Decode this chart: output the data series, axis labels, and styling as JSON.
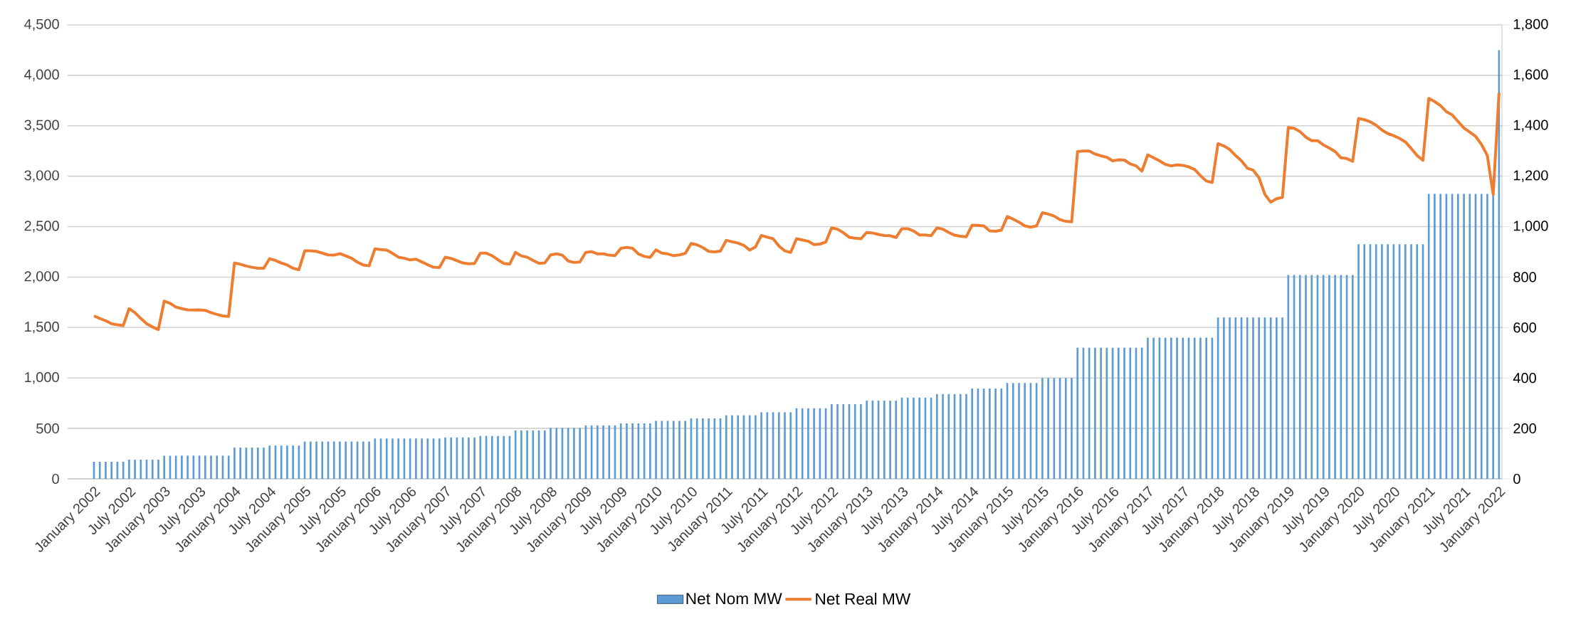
{
  "chart_data": {
    "type": "bar",
    "categories": [
      "January 2002",
      null,
      null,
      null,
      null,
      null,
      "July 2002",
      null,
      null,
      null,
      null,
      null,
      "January 2003",
      null,
      null,
      null,
      null,
      null,
      "July 2003",
      null,
      null,
      null,
      null,
      null,
      "January 2004",
      null,
      null,
      null,
      null,
      null,
      "July 2004",
      null,
      null,
      null,
      null,
      null,
      "January 2005",
      null,
      null,
      null,
      null,
      null,
      "July 2005",
      null,
      null,
      null,
      null,
      null,
      "January 2006",
      null,
      null,
      null,
      null,
      null,
      "July 2006",
      null,
      null,
      null,
      null,
      null,
      "January 2007",
      null,
      null,
      null,
      null,
      null,
      "July 2007",
      null,
      null,
      null,
      null,
      null,
      "January 2008",
      null,
      null,
      null,
      null,
      null,
      "July 2008",
      null,
      null,
      null,
      null,
      null,
      "January 2009",
      null,
      null,
      null,
      null,
      null,
      "July 2009",
      null,
      null,
      null,
      null,
      null,
      "January 2010",
      null,
      null,
      null,
      null,
      null,
      "July 2010",
      null,
      null,
      null,
      null,
      null,
      "January 2011",
      null,
      null,
      null,
      null,
      null,
      "July 2011",
      null,
      null,
      null,
      null,
      null,
      "January 2012",
      null,
      null,
      null,
      null,
      null,
      "July 2012",
      null,
      null,
      null,
      null,
      null,
      "January 2013",
      null,
      null,
      null,
      null,
      null,
      "July 2013",
      null,
      null,
      null,
      null,
      null,
      "January 2014",
      null,
      null,
      null,
      null,
      null,
      "July 2014",
      null,
      null,
      null,
      null,
      null,
      "January 2015",
      null,
      null,
      null,
      null,
      null,
      "July 2015",
      null,
      null,
      null,
      null,
      null,
      "January 2016",
      null,
      null,
      null,
      null,
      null,
      "July 2016",
      null,
      null,
      null,
      null,
      null,
      "January 2017",
      null,
      null,
      null,
      null,
      null,
      "July 2017",
      null,
      null,
      null,
      null,
      null,
      "January 2018",
      null,
      null,
      null,
      null,
      null,
      "July 2018",
      null,
      null,
      null,
      null,
      null,
      "January 2019",
      null,
      null,
      null,
      null,
      null,
      "July 2019",
      null,
      null,
      null,
      null,
      null,
      "January 2020",
      null,
      null,
      null,
      null,
      null,
      "July 2020",
      null,
      null,
      null,
      null,
      null,
      "January 2021",
      null,
      null,
      null,
      null,
      null,
      "July 2021",
      null,
      null,
      null,
      null,
      null,
      "January 2022"
    ],
    "series": [
      {
        "name": "Net Nom MW",
        "color": "#5b9bd5",
        "values": [
          170,
          170,
          170,
          170,
          170,
          170,
          190,
          190,
          190,
          190,
          190,
          190,
          230,
          230,
          230,
          230,
          230,
          230,
          230,
          230,
          230,
          230,
          230,
          230,
          310,
          310,
          310,
          310,
          310,
          310,
          330,
          330,
          330,
          330,
          330,
          330,
          370,
          370,
          370,
          370,
          370,
          370,
          370,
          370,
          370,
          370,
          370,
          370,
          400,
          400,
          400,
          400,
          400,
          400,
          400,
          400,
          400,
          400,
          400,
          400,
          410,
          410,
          410,
          410,
          410,
          410,
          425,
          425,
          425,
          425,
          425,
          425,
          480,
          480,
          480,
          480,
          480,
          480,
          505,
          505,
          505,
          505,
          505,
          505,
          530,
          530,
          530,
          530,
          530,
          530,
          550,
          550,
          550,
          550,
          550,
          550,
          575,
          575,
          575,
          575,
          575,
          575,
          600,
          600,
          600,
          600,
          600,
          600,
          630,
          630,
          630,
          630,
          630,
          630,
          660,
          660,
          660,
          660,
          660,
          660,
          700,
          700,
          700,
          700,
          700,
          700,
          740,
          740,
          740,
          740,
          740,
          740,
          775,
          775,
          775,
          775,
          775,
          775,
          805,
          805,
          805,
          805,
          805,
          805,
          840,
          840,
          840,
          840,
          840,
          840,
          895,
          895,
          895,
          895,
          895,
          895,
          950,
          950,
          950,
          950,
          950,
          950,
          1000,
          1000,
          1000,
          1000,
          1000,
          1000,
          1300,
          1300,
          1300,
          1300,
          1300,
          1300,
          1300,
          1300,
          1300,
          1300,
          1300,
          1300,
          1400,
          1400,
          1400,
          1400,
          1400,
          1400,
          1400,
          1400,
          1400,
          1400,
          1400,
          1400,
          1600,
          1600,
          1600,
          1600,
          1600,
          1600,
          1600,
          1600,
          1600,
          1600,
          1600,
          1600,
          2020,
          2020,
          2020,
          2020,
          2020,
          2020,
          2020,
          2020,
          2020,
          2020,
          2020,
          2020,
          2325,
          2325,
          2325,
          2325,
          2325,
          2325,
          2325,
          2325,
          2325,
          2325,
          2325,
          2325,
          2825,
          2825,
          2825,
          2825,
          2825,
          2825,
          2825,
          2825,
          2825,
          2825,
          2825,
          2825,
          4250
        ]
      },
      {
        "name": "Net Real MW",
        "type": "line",
        "axis": "y2",
        "color": "#ed7d31",
        "values": [
          646,
          636,
          627,
          615,
          611,
          608,
          675,
          659,
          636,
          615,
          602,
          592,
          705,
          696,
          681,
          675,
          670,
          669,
          670,
          668,
          659,
          652,
          646,
          644,
          856,
          851,
          844,
          839,
          835,
          835,
          873,
          866,
          856,
          848,
          835,
          829,
          904,
          904,
          902,
          895,
          888,
          887,
          893,
          884,
          875,
          859,
          848,
          845,
          912,
          909,
          907,
          894,
          879,
          875,
          868,
          871,
          860,
          849,
          839,
          838,
          879,
          874,
          865,
          856,
          853,
          854,
          895,
          895,
          885,
          869,
          854,
          851,
          898,
          884,
          879,
          866,
          855,
          856,
          888,
          892,
          887,
          864,
          858,
          860,
          898,
          901,
          892,
          892,
          887,
          885,
          914,
          918,
          914,
          892,
          882,
          878,
          908,
          895,
          892,
          885,
          888,
          894,
          933,
          928,
          917,
          902,
          900,
          903,
          946,
          940,
          935,
          926,
          907,
          920,
          965,
          958,
          952,
          923,
          904,
          898,
          952,
          947,
          942,
          929,
          931,
          939,
          995,
          990,
          976,
          958,
          954,
          952,
          977,
          975,
          969,
          965,
          964,
          957,
          992,
          992,
          983,
          967,
          967,
          964,
          995,
          990,
          977,
          966,
          962,
          960,
          1006,
          1005,
          1003,
          983,
          982,
          986,
          1040,
          1030,
          1018,
          1003,
          998,
          1003,
          1055,
          1050,
          1042,
          1028,
          1021,
          1019,
          1298,
          1300,
          1300,
          1288,
          1281,
          1275,
          1261,
          1265,
          1264,
          1249,
          1241,
          1220,
          1285,
          1273,
          1261,
          1247,
          1241,
          1245,
          1243,
          1237,
          1227,
          1202,
          1181,
          1175,
          1329,
          1320,
          1306,
          1282,
          1261,
          1232,
          1224,
          1194,
          1128,
          1097,
          1111,
          1116,
          1393,
          1390,
          1377,
          1355,
          1341,
          1341,
          1324,
          1312,
          1298,
          1273,
          1270,
          1259,
          1429,
          1424,
          1416,
          1402,
          1383,
          1369,
          1361,
          1350,
          1336,
          1310,
          1282,
          1263,
          1509,
          1496,
          1480,
          1456,
          1443,
          1417,
          1391,
          1375,
          1358,
          1326,
          1282,
          1127,
          1531
        ]
      }
    ],
    "ylim": [
      0,
      4500
    ],
    "yticks": [
      0,
      500,
      {
        "value": 1000,
        "label": "1,000"
      },
      {
        "value": 1500,
        "label": "1,500"
      },
      {
        "value": 2000,
        "label": "2,000"
      },
      {
        "value": 2500,
        "label": "2,500"
      },
      {
        "value": 3000,
        "label": "3,000"
      },
      {
        "value": 3500,
        "label": "3,500"
      },
      {
        "value": 4000,
        "label": "4,000"
      },
      {
        "value": 4500,
        "label": "4,500"
      }
    ],
    "y2lim": [
      0,
      1800
    ],
    "y2ticks": [
      0,
      200,
      400,
      600,
      800,
      {
        "value": 1000,
        "label": "1,000"
      },
      {
        "value": 1200,
        "label": "1,200"
      },
      {
        "value": 1400,
        "label": "1,400"
      },
      {
        "value": 1600,
        "label": "1,600"
      },
      {
        "value": 1800,
        "label": "1,800"
      }
    ],
    "grid": "y",
    "legend": "bottom"
  }
}
